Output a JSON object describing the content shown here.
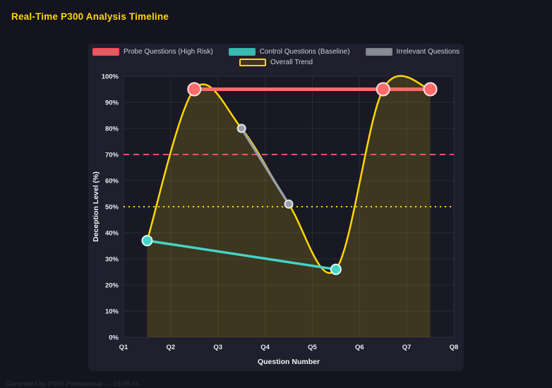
{
  "page": {
    "title": "Real-Time P300 Analysis Timeline",
    "footer": "Generated by P300 Professional — 10:05:45"
  },
  "colors": {
    "background": "#14141f",
    "panel": "#1f1f2e",
    "plot_bg": "#191926",
    "grid": "rgba(255,255,255,0.07)",
    "axis_text": "#e9e9ee",
    "axis_title": "#f2f2f5",
    "title": "#ffd700",
    "legend_text": "#cfd0d8",
    "footer_text": "#303042"
  },
  "chart_data": {
    "type": "line",
    "title": "",
    "xlabel": "Question Number",
    "ylabel": "Deception Level (%)",
    "xlim": [
      1,
      8
    ],
    "ylim": [
      0,
      100
    ],
    "x_ticks": [
      "Q1",
      "Q2",
      "Q3",
      "Q4",
      "Q5",
      "Q6",
      "Q7",
      "Q8"
    ],
    "x_tick_values": [
      1,
      2,
      3,
      4,
      5,
      6,
      7,
      8
    ],
    "y_tick_values": [
      0,
      10,
      20,
      30,
      40,
      50,
      60,
      70,
      80,
      90,
      100
    ],
    "y_tick_suffix": "%",
    "grid": true,
    "legend_position": "top",
    "series": [
      {
        "name": "Probe Questions (High Risk)",
        "x": [
          2.5,
          6.5,
          7.5
        ],
        "y": [
          95,
          95,
          95
        ],
        "color": "#ff6b6b",
        "line_width": 5,
        "point_radius": 9,
        "point_fill": "#ff6b6b",
        "point_border": "#ffdede",
        "legend_fill": "rgba(255,107,107,0.85)",
        "legend_border": "#ff4757",
        "smooth": false,
        "fill": false
      },
      {
        "name": "Control Questions (Baseline)",
        "x": [
          1.5,
          5.5
        ],
        "y": [
          37,
          26
        ],
        "color": "#45d4c8",
        "line_width": 3.5,
        "point_radius": 7,
        "point_fill": "#45d4c8",
        "point_border": "#dafdf8",
        "legend_fill": "rgba(69,212,200,0.85)",
        "legend_border": "#2bb8ac",
        "smooth": false,
        "fill": false
      },
      {
        "name": "Irrelevant Questions",
        "x": [
          3.5,
          4.5
        ],
        "y": [
          80,
          51
        ],
        "color": "#9aa0a8",
        "line_width": 3.5,
        "point_radius": 5.5,
        "point_fill": "#9aa0a8",
        "point_border": "#e3e6e9",
        "legend_fill": "rgba(154,160,168,0.85)",
        "legend_border": "#7d848c",
        "smooth": false,
        "fill": false
      },
      {
        "name": "Overall Trend",
        "x": [
          1.5,
          2.5,
          3.5,
          4.5,
          5.5,
          6.5,
          7.5
        ],
        "y": [
          37,
          95,
          80,
          51,
          26,
          95,
          95
        ],
        "color": "#ffd700",
        "line_width": 2.5,
        "point_radius": 0,
        "point_fill": "#ffd700",
        "point_border": "#ffd700",
        "legend_fill": "rgba(255,215,0,0.12)",
        "legend_border": "#ffd700",
        "smooth": true,
        "fill": true,
        "fill_color": "rgba(255,215,0,0.16)"
      }
    ],
    "reference_lines": [
      {
        "y": 70,
        "color": "#ff4d6d",
        "dash": "8 6",
        "width": 2
      },
      {
        "y": 50,
        "color": "#ffd700",
        "dash": "2 5",
        "width": 2
      }
    ]
  }
}
